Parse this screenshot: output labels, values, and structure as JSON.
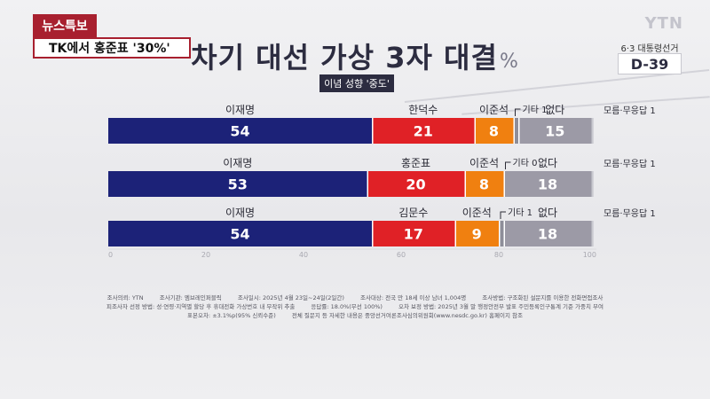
{
  "banner": {
    "tag": "뉴스특보",
    "headline": "TK에서 홍준표 '30%'"
  },
  "logo": "YTN",
  "title": {
    "main": "차기 대선 가상 3자 대결",
    "unit": "%"
  },
  "subtitle": "이념 성향 '중도'",
  "countdown": {
    "label": "6·3 대통령선거",
    "value": "D-39"
  },
  "colors": {
    "lee": "#1c2278",
    "opp": "#e02126",
    "lee_js": "#f08010",
    "other": "#8e8e99",
    "none": "#9c9aa6"
  },
  "chart_data": {
    "type": "bar",
    "orientation": "horizontal-stacked",
    "xlim": [
      0,
      100
    ],
    "x_ticks": [
      "0",
      "20",
      "40",
      "60",
      "80",
      "100"
    ],
    "grid": false,
    "rows": [
      {
        "segments": [
          {
            "name": "이재명",
            "value": 54,
            "color": "lee",
            "label": "54"
          },
          {
            "name": "한덕수",
            "value": 21,
            "color": "opp",
            "label": "21"
          },
          {
            "name": "이준석",
            "value": 8,
            "color": "lee_js",
            "label": "8"
          },
          {
            "name": "기타",
            "value": 1,
            "color": "other",
            "label": ""
          },
          {
            "name": "없다",
            "value": 15,
            "color": "none",
            "label": "15"
          }
        ],
        "other_note": "기타 1",
        "unknown_note": "모름·무응답 1",
        "unknown_value": 1
      },
      {
        "segments": [
          {
            "name": "이재명",
            "value": 53,
            "color": "lee",
            "label": "53"
          },
          {
            "name": "홍준표",
            "value": 20,
            "color": "opp",
            "label": "20"
          },
          {
            "name": "이준석",
            "value": 8,
            "color": "lee_js",
            "label": "8"
          },
          {
            "name": "기타",
            "value": 0,
            "color": "other",
            "label": ""
          },
          {
            "name": "없다",
            "value": 18,
            "color": "none",
            "label": "18"
          }
        ],
        "other_note": "기타 0",
        "unknown_note": "모름·무응답 1",
        "unknown_value": 1
      },
      {
        "segments": [
          {
            "name": "이재명",
            "value": 54,
            "color": "lee",
            "label": "54"
          },
          {
            "name": "김문수",
            "value": 17,
            "color": "opp",
            "label": "17"
          },
          {
            "name": "이준석",
            "value": 9,
            "color": "lee_js",
            "label": "9"
          },
          {
            "name": "기타",
            "value": 1,
            "color": "other",
            "label": ""
          },
          {
            "name": "없다",
            "value": 18,
            "color": "none",
            "label": "18"
          }
        ],
        "other_note": "기타 1",
        "unknown_note": "모름·무응답 1",
        "unknown_value": 1
      }
    ]
  },
  "footnotes": [
    [
      "조사의뢰: YTN",
      "조사기관: 엠브레인퍼블릭",
      "조사일시: 2025년 4월 23일~24일(2일간)",
      "조사대상: 전국 만 18세 이상 남녀 1,004명",
      "조사방법: 구조화된 설문지를 이용한 전화면접조사"
    ],
    [
      "피조사자 선정 방법: 성·연령·지역별 할당 후 휴대전화 가상번호 내 무작위 추출",
      "응답률: 18.0%(무선 100%)",
      "오차 보정 방법: 2025년 3월 말 행정안전부 발표 주민등록인구통계 기준 가중치 부여"
    ],
    [
      "표본오차: ±3.1%p(95% 신뢰수준)",
      "전체 질문지 등 자세한 내용은 중앙선거여론조사심의위원회(www.nesdc.go.kr) 홈페이지 참조"
    ]
  ]
}
